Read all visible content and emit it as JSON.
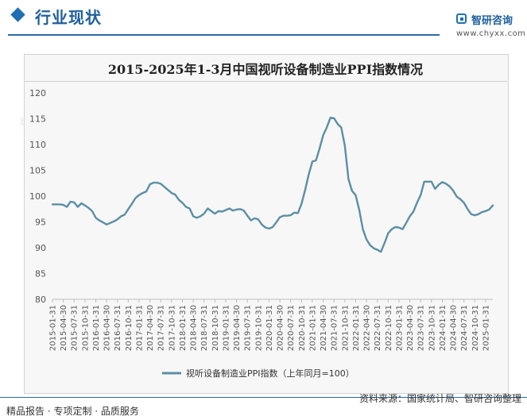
{
  "header": {
    "section_title": "行业现状",
    "brand_name": "智研咨询",
    "brand_url": "www.chyxx.com"
  },
  "watermark": {
    "text": "智研咨询"
  },
  "chart_data": {
    "type": "line",
    "title": "2015-2025年1-3月中国视听设备制造业PPI指数情况",
    "xlabel": "",
    "ylabel": "",
    "ylim": [
      80,
      120
    ],
    "yticks": [
      80,
      85,
      90,
      95,
      100,
      105,
      110,
      115,
      120
    ],
    "grid": false,
    "legend_position": "bottom",
    "x": [
      "2015-01-31",
      "2015-02-28",
      "2015-03-31",
      "2015-04-30",
      "2015-05-31",
      "2015-06-30",
      "2015-07-31",
      "2015-08-31",
      "2015-09-30",
      "2015-10-31",
      "2015-11-30",
      "2015-12-31",
      "2016-01-31",
      "2016-02-29",
      "2016-03-31",
      "2016-04-30",
      "2016-05-31",
      "2016-06-30",
      "2016-07-31",
      "2016-08-31",
      "2016-09-30",
      "2016-10-31",
      "2016-11-30",
      "2016-12-31",
      "2017-01-31",
      "2017-02-28",
      "2017-03-31",
      "2017-04-30",
      "2017-05-31",
      "2017-06-30",
      "2017-07-31",
      "2017-08-31",
      "2017-09-30",
      "2017-10-31",
      "2017-11-30",
      "2017-12-31",
      "2018-01-31",
      "2018-02-28",
      "2018-03-31",
      "2018-04-30",
      "2018-05-31",
      "2018-06-30",
      "2018-07-31",
      "2018-08-31",
      "2018-09-30",
      "2018-10-31",
      "2018-11-30",
      "2018-12-31",
      "2019-01-31",
      "2019-02-28",
      "2019-03-31",
      "2019-04-30",
      "2019-05-31",
      "2019-06-30",
      "2019-07-31",
      "2019-08-31",
      "2019-09-30",
      "2019-10-31",
      "2019-11-30",
      "2019-12-31",
      "2020-01-31",
      "2020-02-29",
      "2020-03-31",
      "2020-04-30",
      "2020-05-31",
      "2020-06-30",
      "2020-07-31",
      "2020-08-31",
      "2020-09-30",
      "2020-10-31",
      "2020-11-30",
      "2020-12-31",
      "2021-01-31",
      "2021-02-28",
      "2021-03-31",
      "2021-04-30",
      "2021-05-31",
      "2021-06-30",
      "2021-07-31",
      "2021-08-31",
      "2021-09-30",
      "2021-10-31",
      "2021-11-30",
      "2021-12-31",
      "2022-01-31",
      "2022-02-28",
      "2022-03-31",
      "2022-04-30",
      "2022-05-31",
      "2022-06-30",
      "2022-07-31",
      "2022-08-31",
      "2022-09-30",
      "2022-10-31",
      "2022-11-30",
      "2022-12-31",
      "2023-01-31",
      "2023-02-28",
      "2023-03-31",
      "2023-04-30",
      "2023-05-31",
      "2023-06-30",
      "2023-07-31",
      "2023-08-31",
      "2023-09-30",
      "2023-10-31",
      "2023-11-30",
      "2023-12-31",
      "2024-01-31",
      "2024-02-29",
      "2024-03-31",
      "2024-04-30",
      "2024-05-31",
      "2024-06-30",
      "2024-07-31",
      "2024-08-31",
      "2024-09-30",
      "2024-10-31",
      "2024-11-30",
      "2024-12-31",
      "2025-01-31",
      "2025-02-28",
      "2025-03-31"
    ],
    "x_tick_labels": [
      "2015-01-31",
      "2015-04-30",
      "2015-07-31",
      "2015-10-31",
      "2016-01-31",
      "2016-04-30",
      "2016-07-31",
      "2016-10-31",
      "2017-01-31",
      "2017-04-30",
      "2017-07-31",
      "2017-10-31",
      "2018-01-31",
      "2018-04-30",
      "2018-07-31",
      "2018-10-31",
      "2019-01-31",
      "2019-04-30",
      "2019-07-31",
      "2019-10-31",
      "2020-01-31",
      "2020-04-30",
      "2020-07-31",
      "2020-10-31",
      "2021-01-31",
      "2021-04-30",
      "2021-07-31",
      "2021-10-31",
      "2022-01-31",
      "2022-04-30",
      "2022-07-31",
      "2022-10-31",
      "2023-01-31",
      "2023-04-30",
      "2023-07-31",
      "2023-10-31",
      "2024-01-31",
      "2024-04-30",
      "2024-07-31",
      "2024-10-31",
      "2025-01-31"
    ],
    "series": [
      {
        "name": "视听设备制造业PPI指数（上年同月=100）",
        "color": "#5b8fa6",
        "values": [
          98.4,
          98.4,
          98.4,
          98.3,
          97.9,
          98.9,
          98.8,
          97.9,
          98.6,
          98.2,
          97.7,
          97.1,
          95.8,
          95.3,
          94.9,
          94.5,
          94.8,
          95.1,
          95.5,
          96.1,
          96.4,
          97.5,
          98.5,
          99.6,
          100.2,
          100.6,
          100.9,
          102.3,
          102.6,
          102.6,
          102.4,
          101.8,
          101.2,
          100.6,
          100.3,
          99.3,
          98.7,
          97.9,
          97.6,
          96.1,
          95.8,
          96.1,
          96.6,
          97.6,
          97.1,
          96.6,
          97.1,
          97.0,
          97.3,
          97.6,
          97.2,
          97.4,
          97.5,
          97.2,
          96.2,
          95.3,
          95.7,
          95.5,
          94.5,
          93.9,
          93.7,
          94.0,
          94.9,
          95.9,
          96.2,
          96.2,
          96.3,
          96.8,
          96.7,
          98.5,
          101.2,
          104.2,
          106.7,
          106.9,
          109.2,
          111.8,
          113.3,
          115.2,
          115.1,
          114.0,
          113.3,
          109.8,
          103.3,
          101.0,
          100.2,
          97.3,
          93.6,
          91.6,
          90.5,
          89.9,
          89.6,
          89.2,
          90.9,
          92.8,
          93.6,
          94.0,
          93.9,
          93.6,
          94.8,
          96.1,
          97.0,
          98.7,
          100.2,
          102.8,
          102.8,
          102.8,
          101.4,
          102.2,
          102.7,
          102.4,
          101.9,
          101.1,
          99.9,
          99.4,
          98.7,
          97.5,
          96.5,
          96.3,
          96.5,
          96.9,
          97.1,
          97.4,
          98.2
        ]
      }
    ]
  },
  "footer": {
    "left": "精品报告 · 专项定制 · 品质服务",
    "source": "资料来源：国家统计局、智研咨询整理"
  }
}
